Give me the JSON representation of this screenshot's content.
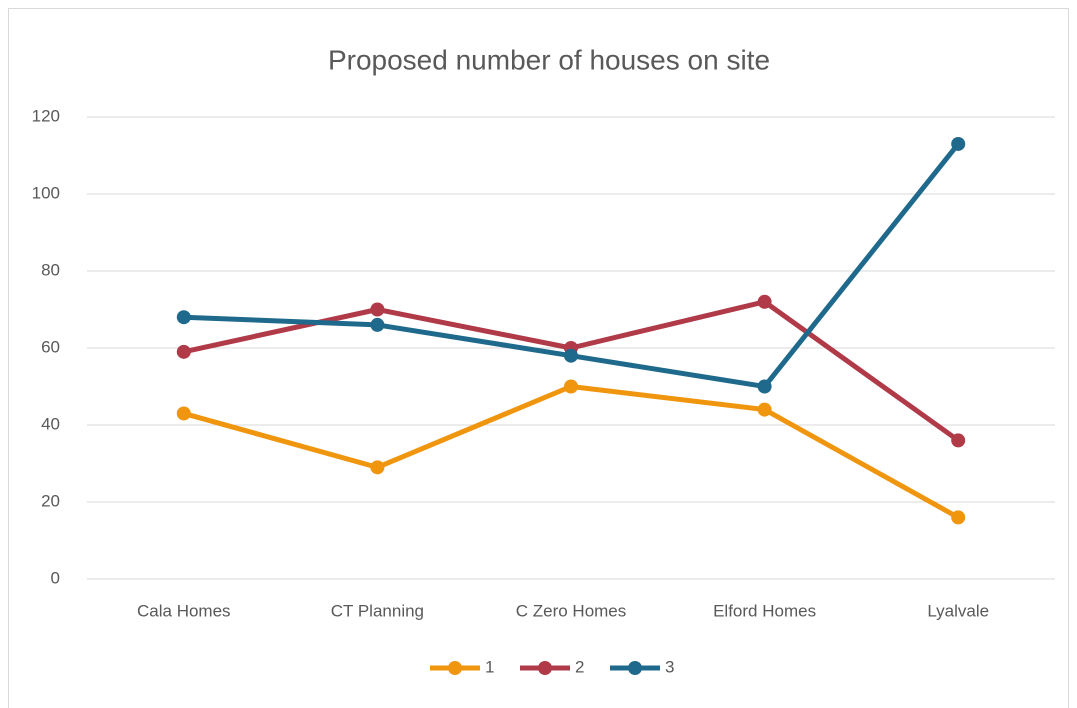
{
  "chart_data": {
    "type": "line",
    "title": "Proposed number of houses on site",
    "categories": [
      "Cala Homes",
      "CT Planning",
      "C Zero Homes",
      "Elford Homes",
      "Lyalvale"
    ],
    "series": [
      {
        "name": "1",
        "color": "#f0950e",
        "values": [
          43,
          29,
          50,
          44,
          16
        ]
      },
      {
        "name": "2",
        "color": "#b03a48",
        "values": [
          59,
          70,
          60,
          72,
          36
        ]
      },
      {
        "name": "3",
        "color": "#1f6a8c",
        "values": [
          68,
          66,
          58,
          50,
          113
        ]
      }
    ],
    "ylim": [
      0,
      120
    ],
    "yticks": [
      0,
      20,
      40,
      60,
      80,
      100,
      120
    ],
    "grid": true,
    "legend": "bottom"
  }
}
